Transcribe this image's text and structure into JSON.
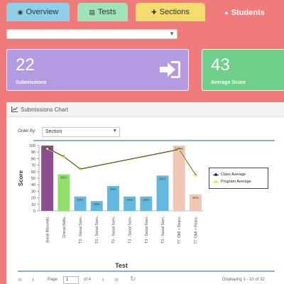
{
  "tabs": [
    {
      "label": "Overview",
      "icon": "eye-icon"
    },
    {
      "label": "Tests",
      "icon": "document-icon"
    },
    {
      "label": "Sections",
      "icon": "puzzle-icon"
    },
    {
      "label": "Students",
      "icon": "users-icon"
    }
  ],
  "cards": {
    "submissions": {
      "value": "22",
      "label": "Submissions",
      "color": "#b29be0"
    },
    "average": {
      "value": "43",
      "label": "Average Score",
      "color": "#6fd08c"
    }
  },
  "panel": {
    "title": "Submissions Chart",
    "order_by_label": "Order By:",
    "order_by_value": "Section"
  },
  "pager": {
    "page_label": "Page",
    "page_value": "1",
    "of_label": "of 4",
    "summary": "Displaying 1 - 10 of 32"
  },
  "chart_data": {
    "type": "bar",
    "xlabel": "Test",
    "ylabel": "Score",
    "ylim": [
      0,
      100
    ],
    "yticks": [
      0,
      10,
      20,
      30,
      40,
      50,
      60,
      70,
      80,
      90,
      100
    ],
    "categories": [
      "Social Misconds...",
      "Clinical Skills...",
      "T3 - Social Scen...",
      "T3 - Social Scen...",
      "T3 - Social Scen...",
      "T3 - Social Scen...",
      "T3 - Social Scen...",
      "T3 - Social Scen...",
      "T7: OMI + Repro...",
      "T7: OMI + Repro..."
    ],
    "values": [
      100,
      56,
      22,
      15,
      38,
      22,
      22,
      54,
      100,
      25
    ],
    "value_labels": [
      "100%",
      "56%",
      "22%",
      "15%",
      "38%",
      "22%",
      "22%",
      "54%",
      "100%",
      "25%"
    ],
    "bar_colors": [
      "#8b4f8f",
      "#90e06c",
      "#62b8df",
      "#62b8df",
      "#62b8df",
      "#62b8df",
      "#62b8df",
      "#62b8df",
      "#f0c6b5",
      "#f0c6b5"
    ],
    "series": [
      {
        "name": "Class Average",
        "values": [
          96,
          83,
          64,
          null,
          null,
          null,
          null,
          null,
          94,
          55
        ],
        "color": "#2b2b5a"
      },
      {
        "name": "Program Average",
        "values": [
          96,
          83,
          64,
          null,
          null,
          null,
          null,
          null,
          94,
          55
        ],
        "color": "#e7e74a"
      }
    ],
    "legend_position": "right"
  }
}
